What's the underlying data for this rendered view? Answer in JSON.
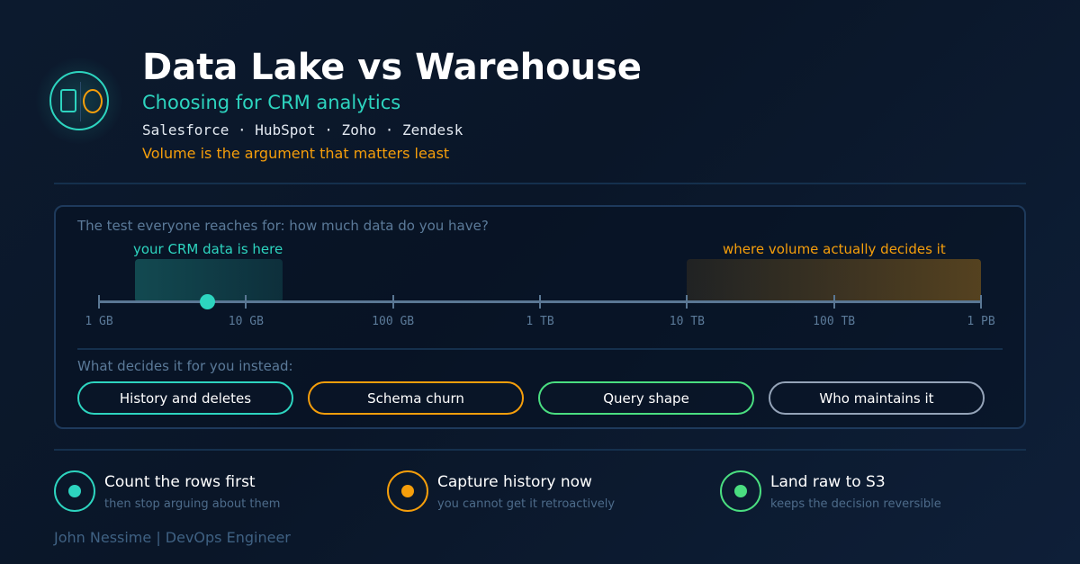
{
  "header": {
    "title": "Data Lake vs Warehouse",
    "subtitle": "Choosing for CRM analytics",
    "sources": "Salesforce · HubSpot · Zoho · Zendesk",
    "tagline": "Volume is the argument that matters least"
  },
  "scale": {
    "question": "The test everyone reaches for: how much data do you have?",
    "crm_zone_label": "your CRM data is here",
    "volume_zone_label": "where volume actually decides it",
    "ticks": [
      "1 GB",
      "10 GB",
      "100 GB",
      "1 TB",
      "10 TB",
      "100 TB",
      "1 PB"
    ]
  },
  "deciders": {
    "question": "What decides it for you instead:",
    "pills": [
      {
        "label": "History and deletes",
        "color": "#2dd4bf"
      },
      {
        "label": "Schema churn",
        "color": "#f59e0b"
      },
      {
        "label": "Query shape",
        "color": "#4ade80"
      },
      {
        "label": "Who maintains it",
        "color": "#94a3b8"
      }
    ]
  },
  "tips": [
    {
      "title": "Count the rows first",
      "subtitle": "then stop arguing about them",
      "color": "#2dd4bf"
    },
    {
      "title": "Capture history now",
      "subtitle": "you cannot get it retroactively",
      "color": "#f59e0b"
    },
    {
      "title": "Land raw to S3",
      "subtitle": "keeps the decision reversible",
      "color": "#4ade80"
    }
  ],
  "footer": "John Nessime | DevOps Engineer",
  "colors": {
    "accent": "#2dd4bf",
    "warning": "#f59e0b",
    "success": "#4ade80",
    "muted": "#94a3b8"
  },
  "icons": {
    "logo": "lake-warehouse-logo-icon",
    "tip": "target-dot-icon"
  }
}
